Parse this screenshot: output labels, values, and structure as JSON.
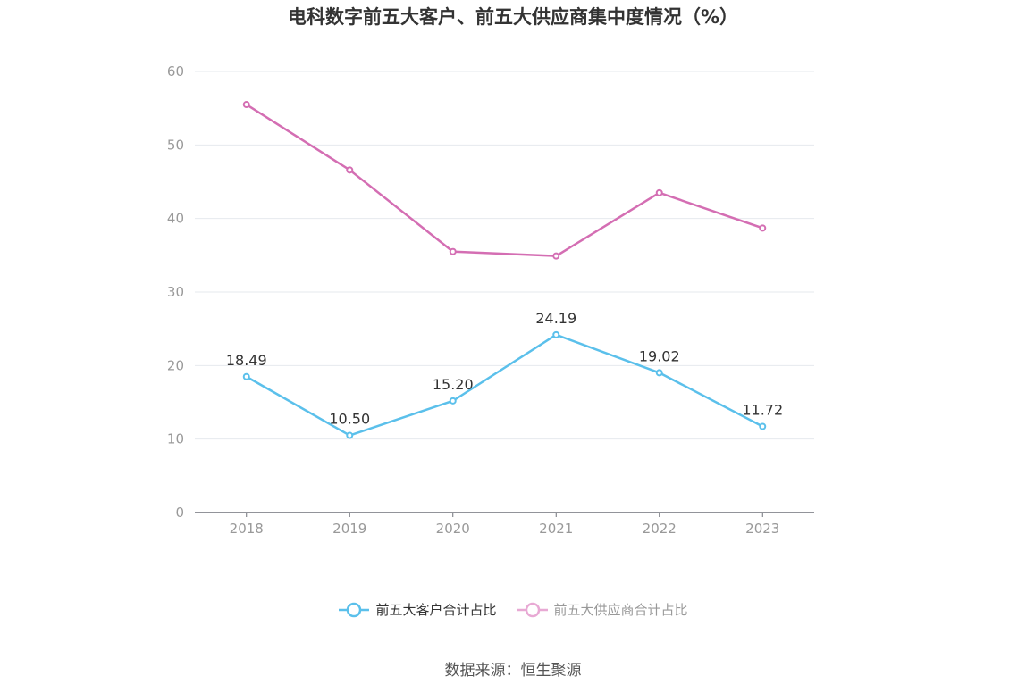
{
  "title": "电科数字前五大客户、前五大供应商集中度情况（%）",
  "source": "数据来源：恒生聚源",
  "chart_data": {
    "type": "line",
    "x": [
      "2018",
      "2019",
      "2020",
      "2021",
      "2022",
      "2023"
    ],
    "ylim": [
      0,
      60
    ],
    "yticks": [
      0,
      10,
      20,
      30,
      40,
      50,
      60
    ],
    "grid": true,
    "legend_position": "bottom",
    "series": [
      {
        "name": "前五大客户合计占比",
        "values": [
          18.49,
          10.5,
          15.2,
          24.19,
          19.02,
          11.72
        ],
        "labels": [
          "18.49",
          "10.50",
          "15.20",
          "24.19",
          "19.02",
          "11.72"
        ],
        "color": "#5bc0eb"
      },
      {
        "name": "前五大供应商合计占比",
        "values": [
          55.5,
          46.6,
          35.5,
          34.9,
          43.5,
          38.7
        ],
        "color": "#d46eb3",
        "legend_color": "#e8a9d4"
      }
    ]
  }
}
